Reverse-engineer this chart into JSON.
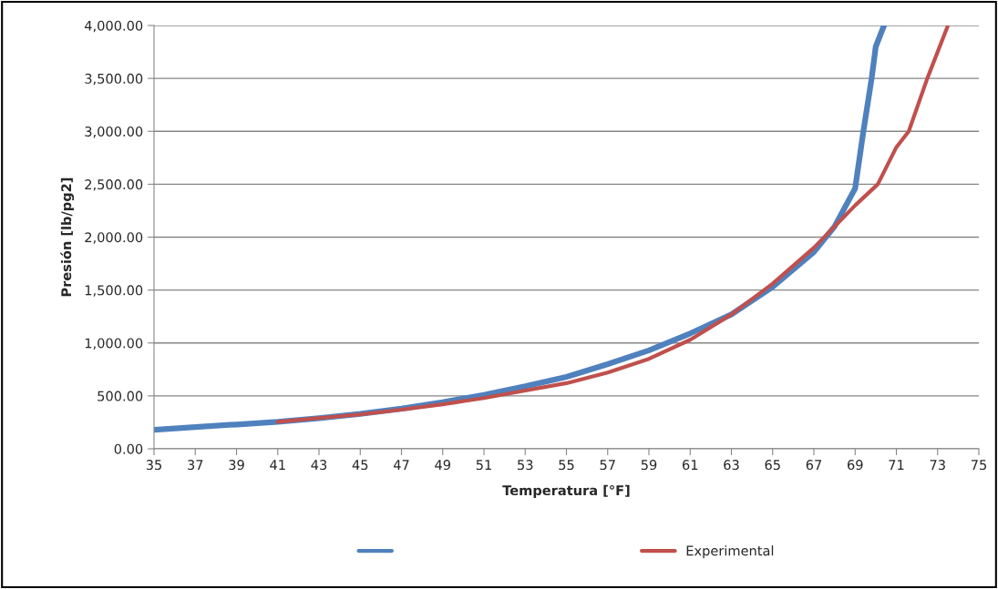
{
  "chart_data": {
    "type": "line",
    "xlabel": "Temperatura [°F]",
    "ylabel": "Presión [lb/pg2]",
    "xlim": [
      35,
      75
    ],
    "xticks": [
      35,
      37,
      39,
      41,
      43,
      45,
      47,
      49,
      51,
      53,
      55,
      57,
      59,
      61,
      63,
      65,
      67,
      69,
      71,
      73,
      75
    ],
    "ylim": [
      0,
      4000
    ],
    "yticks": [
      {
        "value": 0,
        "label": "0.00"
      },
      {
        "value": 500,
        "label": "500.00"
      },
      {
        "value": 1000,
        "label": "1,000.00"
      },
      {
        "value": 1500,
        "label": "1,500.00"
      },
      {
        "value": 2000,
        "label": "2,000.00"
      },
      {
        "value": 2500,
        "label": "2,500.00"
      },
      {
        "value": 3000,
        "label": "3,000.00"
      },
      {
        "value": 3500,
        "label": "3,500.00"
      },
      {
        "value": 4000,
        "label": "4,000.00"
      }
    ],
    "grid": "y",
    "legend": "bottom",
    "series": [
      {
        "color": "#4f81bd",
        "x": [
          35,
          37,
          39,
          41,
          43,
          45,
          47,
          49,
          51,
          53,
          55,
          57,
          59,
          61,
          63,
          65,
          67,
          68,
          69,
          69.4,
          69.8,
          70.0,
          70.4
        ],
        "values": [
          180,
          205,
          230,
          255,
          290,
          330,
          380,
          440,
          510,
          590,
          680,
          800,
          930,
          1090,
          1270,
          1530,
          1860,
          2100,
          2460,
          3000,
          3500,
          3800,
          4000
        ]
      },
      {
        "name": "Experimental",
        "color": "#c0504d",
        "x": [
          41,
          43,
          45,
          47,
          49,
          51,
          53,
          55,
          57,
          59,
          61,
          63,
          65,
          67,
          69,
          70.1,
          71,
          71.6,
          72.5,
          73.5
        ],
        "values": [
          255,
          290,
          325,
          370,
          420,
          480,
          550,
          620,
          720,
          850,
          1030,
          1270,
          1560,
          1900,
          2300,
          2500,
          2850,
          3000,
          3500,
          4000
        ]
      }
    ]
  }
}
